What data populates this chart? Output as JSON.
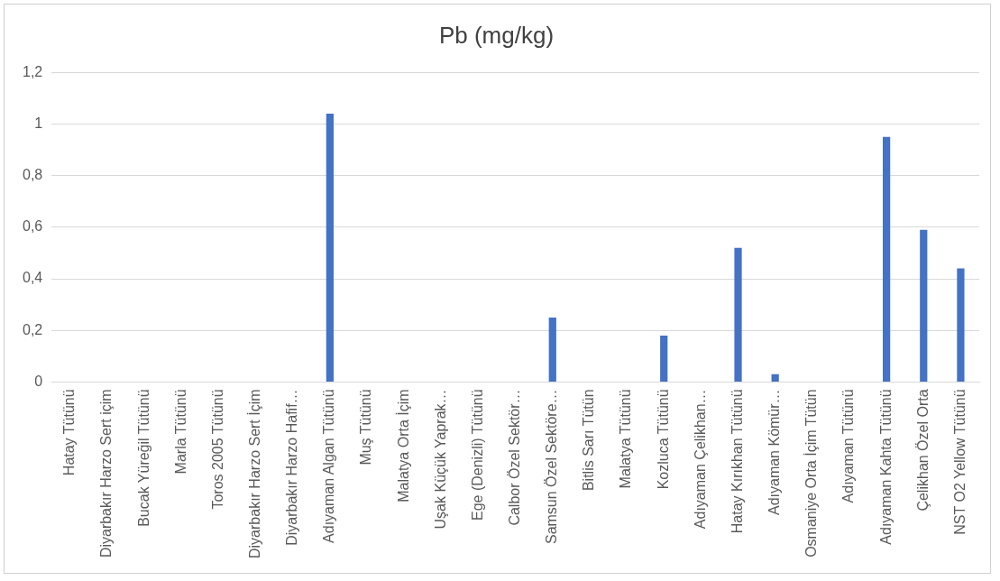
{
  "chart_data": {
    "type": "bar",
    "title": "Pb (mg/kg)",
    "categories": [
      "Hatay Tütünü",
      "Diyarbakır Harzo Sert içim",
      "Bucak Yüreğil Tütünü",
      "Marla Tütünü",
      "Toros 2005 Tütünü",
      "Diyarbakır Harzo Sert İçim",
      "Diyarbakır Harzo Hafif…",
      "Adıyaman Algan Tütünü",
      "Muş Tütünü",
      "Malatya Orta İçim",
      "Uşak Küçük Yaprak…",
      "Ege (Denizli) Tütünü",
      "Calbor Özel Sektör…",
      "Samsun Özel Sektöre…",
      "Bitlis Sarı Tütün",
      "Malatya Tütünü",
      "Kozluca Tütünü",
      "Adıyaman Çelikhan…",
      "Hatay Kırıkhan Tütünü",
      "Adıyaman Kömür…",
      "Osmaniye Orta İçim Tütün",
      "Adıyaman Tütünü",
      "Adıyaman Kahta Tütünü",
      "Çelikhan Özel Orta",
      "NST O2 Yellow Tütünü"
    ],
    "values": [
      0,
      0,
      0,
      0,
      0,
      0,
      0,
      1.04,
      0,
      0,
      0,
      0,
      0,
      0.25,
      0,
      0,
      0.18,
      0,
      0.52,
      0.03,
      0,
      0,
      0.95,
      0.59,
      0.44
    ],
    "color": "#4472c4",
    "ylim": [
      0,
      1.2
    ],
    "yticks": [
      {
        "value": 0,
        "label": "0"
      },
      {
        "value": 0.2,
        "label": "0,2"
      },
      {
        "value": 0.4,
        "label": "0,4"
      },
      {
        "value": 0.6,
        "label": "0,6"
      },
      {
        "value": 0.8,
        "label": "0,8"
      },
      {
        "value": 1,
        "label": "1"
      },
      {
        "value": 1.2,
        "label": "1,2"
      }
    ],
    "grid": "y",
    "legend": false
  }
}
